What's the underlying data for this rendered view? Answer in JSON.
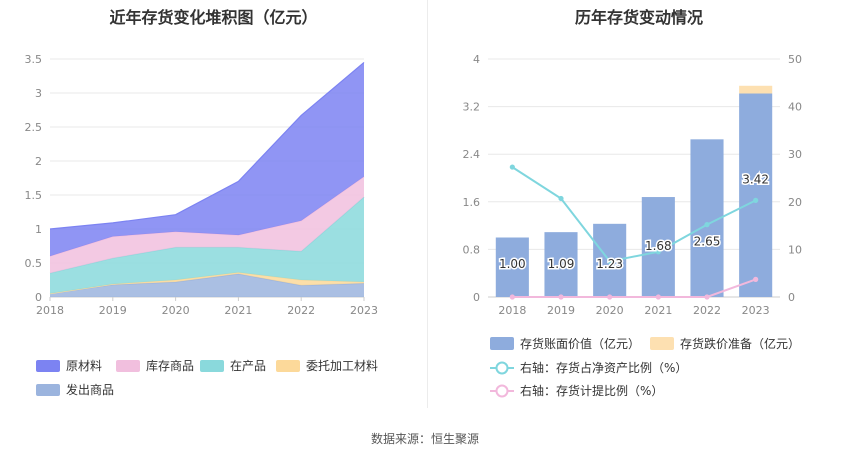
{
  "left_chart": {
    "title": "近年存货变化堆积图（亿元）"
  },
  "right_chart": {
    "title": "历年存货变动情况"
  },
  "source": "数据来源：恒生聚源",
  "chart_data": [
    {
      "type": "area",
      "title": "近年存货变化堆积图（亿元）",
      "stacked": true,
      "x": [
        "2018",
        "2019",
        "2020",
        "2021",
        "2022",
        "2023"
      ],
      "ylim": [
        0,
        3.5
      ],
      "yticks": [
        "0",
        "0.5",
        "1",
        "1.5",
        "2",
        "2.5",
        "3",
        "3.5"
      ],
      "grid": true,
      "legend_position": "bottom",
      "series": [
        {
          "name": "发出商品",
          "color": "#9bb4de",
          "values": [
            0.05,
            0.18,
            0.22,
            0.34,
            0.17,
            0.2
          ]
        },
        {
          "name": "委托加工材料",
          "color": "#fcd99a",
          "values": [
            0.0,
            0.01,
            0.03,
            0.02,
            0.08,
            0.02
          ]
        },
        {
          "name": "在产品",
          "color": "#8ad9dc",
          "values": [
            0.3,
            0.38,
            0.48,
            0.37,
            0.42,
            1.25
          ]
        },
        {
          "name": "库存商品",
          "color": "#f1bfde",
          "values": [
            0.25,
            0.32,
            0.23,
            0.18,
            0.45,
            0.3
          ]
        },
        {
          "name": "原材料",
          "color": "#7c83f2",
          "values": [
            0.4,
            0.2,
            0.25,
            0.79,
            1.55,
            1.68
          ]
        }
      ],
      "legend_order": [
        "原材料",
        "库存商品",
        "在产品",
        "委托加工材料",
        "发出商品"
      ]
    },
    {
      "type": "bar",
      "title": "历年存货变动情况",
      "categories": [
        "2018",
        "2019",
        "2020",
        "2021",
        "2022",
        "2023"
      ],
      "ylim": [
        0,
        4
      ],
      "yticks": [
        "0",
        "0.8",
        "1.6",
        "2.4",
        "3.2",
        "4"
      ],
      "y2lim": [
        0,
        50
      ],
      "y2ticks": [
        "0",
        "10",
        "20",
        "30",
        "40",
        "50"
      ],
      "grid": true,
      "legend_position": "bottom",
      "series": [
        {
          "name": "存货账面价值（亿元）",
          "kind": "bar",
          "axis": "left",
          "color": "#8eacdd",
          "values": [
            1.0,
            1.09,
            1.23,
            1.68,
            2.65,
            3.42
          ],
          "labels": [
            "1.00",
            "1.09",
            "1.23",
            "1.68",
            "2.65",
            "3.42"
          ]
        },
        {
          "name": "存货跌价准备（亿元）",
          "kind": "bar-stack",
          "axis": "left",
          "color": "#fde0b1",
          "values": [
            0,
            0,
            0,
            0,
            0,
            0.13
          ]
        },
        {
          "name": "右轴：存货占净资产比例（%）",
          "kind": "line",
          "axis": "right",
          "color": "#7fd6de",
          "values": [
            27.3,
            20.7,
            7.5,
            9.5,
            15.2,
            20.3
          ]
        },
        {
          "name": "右轴：存货计提比例（%）",
          "kind": "line",
          "axis": "right",
          "color": "#f2b8dc",
          "values": [
            0,
            0,
            0,
            0,
            0,
            3.7
          ]
        }
      ]
    }
  ]
}
